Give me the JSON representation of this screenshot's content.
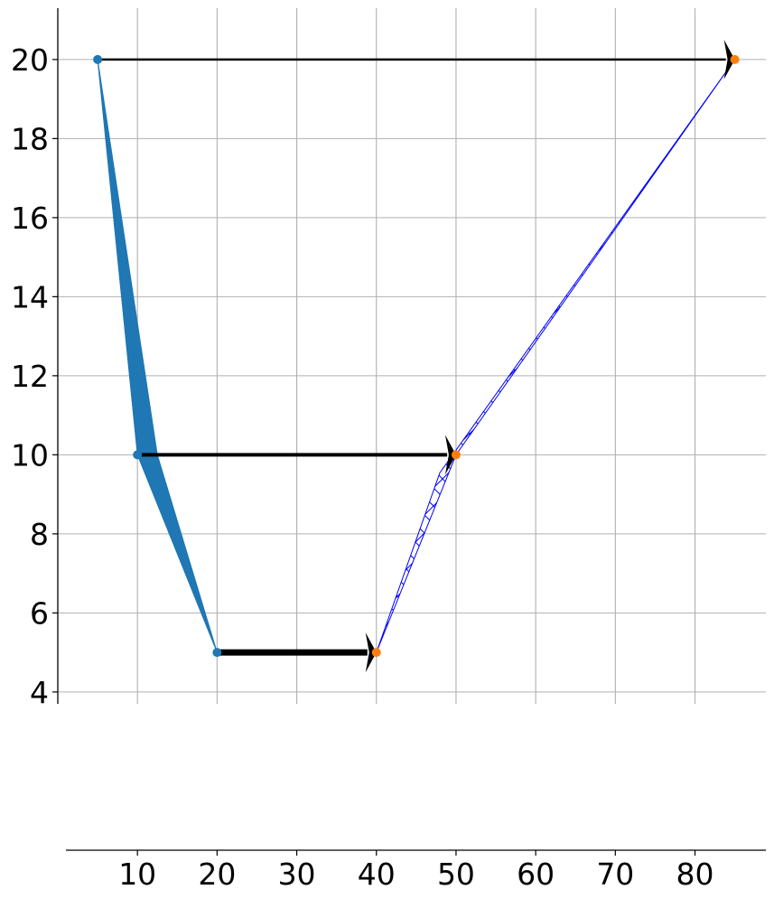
{
  "chart_data": {
    "type": "line",
    "title": "",
    "xlabel": "",
    "ylabel": "",
    "xlim": [
      0,
      88.9
    ],
    "ylim": [
      3.7,
      21.3
    ],
    "x_ticks": [
      10,
      20,
      30,
      40,
      50,
      60,
      70,
      80
    ],
    "y_ticks": [
      4,
      6,
      8,
      10,
      12,
      14,
      16,
      18,
      20
    ],
    "grid": true,
    "series": [
      {
        "role": "left-points",
        "fill": "solid",
        "color": "#1f77b4",
        "points": [
          {
            "x": 5,
            "y": 20
          },
          {
            "x": 10,
            "y": 10
          },
          {
            "x": 20,
            "y": 5
          }
        ]
      },
      {
        "role": "right-points",
        "fill": "hatched",
        "color": "#0000ff",
        "marker_color": "#ff7f0e",
        "points": [
          {
            "x": 85,
            "y": 20
          },
          {
            "x": 50,
            "y": 10
          },
          {
            "x": 40,
            "y": 5
          }
        ]
      }
    ],
    "arrows": [
      {
        "from": [
          5,
          20
        ],
        "to": [
          85,
          20
        ],
        "thickness": 1
      },
      {
        "from": [
          10,
          10
        ],
        "to": [
          50,
          10
        ],
        "thickness": 2
      },
      {
        "from": [
          20,
          5
        ],
        "to": [
          40,
          5
        ],
        "thickness": 4
      }
    ],
    "x_axis_position": "bottom, detached",
    "colors": {
      "arrow": "#000000",
      "grid": "#b0b0b0"
    }
  }
}
